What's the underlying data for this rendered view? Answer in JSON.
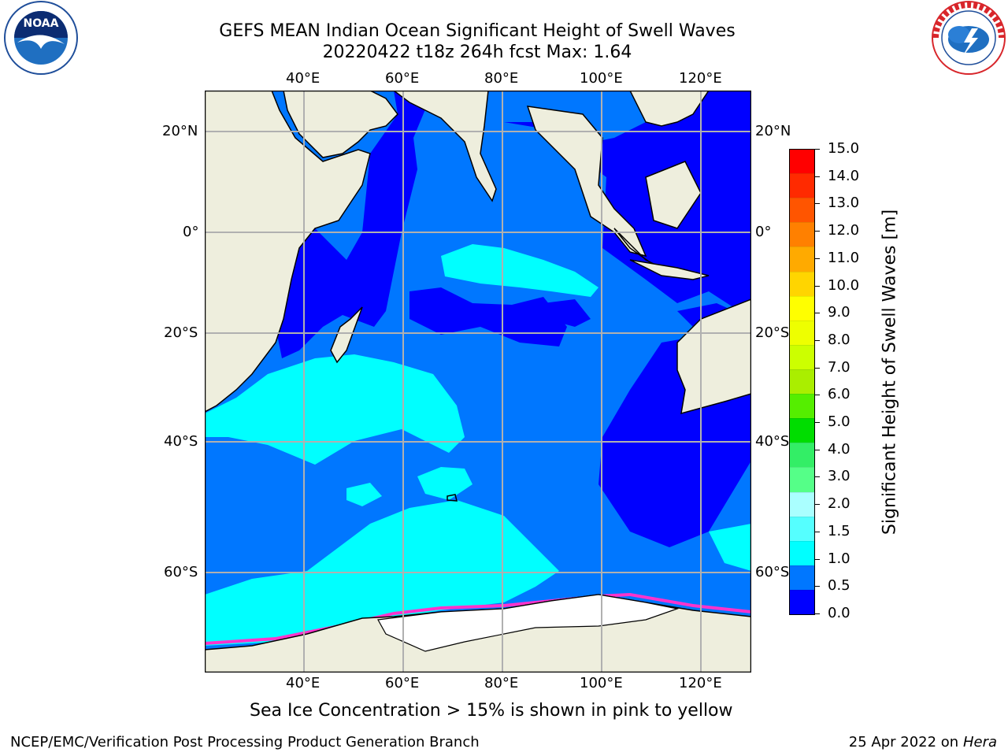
{
  "header": {
    "title_line1": "GEFS MEAN Indian Ocean Significant Height of Swell Waves",
    "title_line2": "20220422 t18z 264h fcst   Max: 1.64"
  },
  "logos": {
    "left": {
      "name": "NOAA",
      "ring_text": "NATIONAL OCEANIC AND ATMOSPHERIC ADMINISTRATION · U.S. DEPARTMENT OF COMMERCE"
    },
    "right": {
      "name": "NATIONAL WEATHER SERVICE"
    }
  },
  "map": {
    "top_lon_labels": [
      "40°E",
      "60°E",
      "80°E",
      "100°E",
      "120°E"
    ],
    "bottom_lon_labels": [
      "40°E",
      "60°E",
      "80°E",
      "100°E",
      "120°E"
    ],
    "left_lat_labels": [
      "20°N",
      "0°",
      "20°S",
      "40°S",
      "60°S"
    ],
    "right_lat_labels": [
      "20°N",
      "0°",
      "20°S",
      "40°S",
      "60°S"
    ],
    "colors": {
      "land": "#eeeedd",
      "ocean_0_05": "#0000ff",
      "ocean_05_10": "#0077ff",
      "ocean_10_15": "#00ffff",
      "ice_edge": "#ff33cc",
      "ice_high": "#ffbb44",
      "gridline": "#b0b0b0"
    }
  },
  "colorbar": {
    "label": "Significant Height of Swell Waves [m]",
    "ticks": [
      "15.0",
      "14.0",
      "13.0",
      "12.0",
      "11.0",
      "10.0",
      "9.0",
      "8.0",
      "7.0",
      "6.0",
      "5.0",
      "4.0",
      "3.0",
      "2.0",
      "1.5",
      "1.0",
      "0.5",
      "0.0"
    ],
    "colors_top_to_bottom": [
      "#ff0000",
      "#ff2a00",
      "#ff5500",
      "#ff8000",
      "#ffaa00",
      "#ffd500",
      "#ffff00",
      "#eeff00",
      "#ccff00",
      "#aaee00",
      "#55ee00",
      "#00dd00",
      "#33ee66",
      "#55ff88",
      "#aaffff",
      "#55ffff",
      "#00ffff",
      "#0077ff",
      "#0000ff"
    ]
  },
  "footer": {
    "note": "Sea Ice Concentration > 15% is shown in pink to yellow",
    "left": "NCEP/EMC/Verification Post Processing Product Generation Branch",
    "right_prefix": "25 Apr 2022 on ",
    "right_machine": "Hera"
  }
}
